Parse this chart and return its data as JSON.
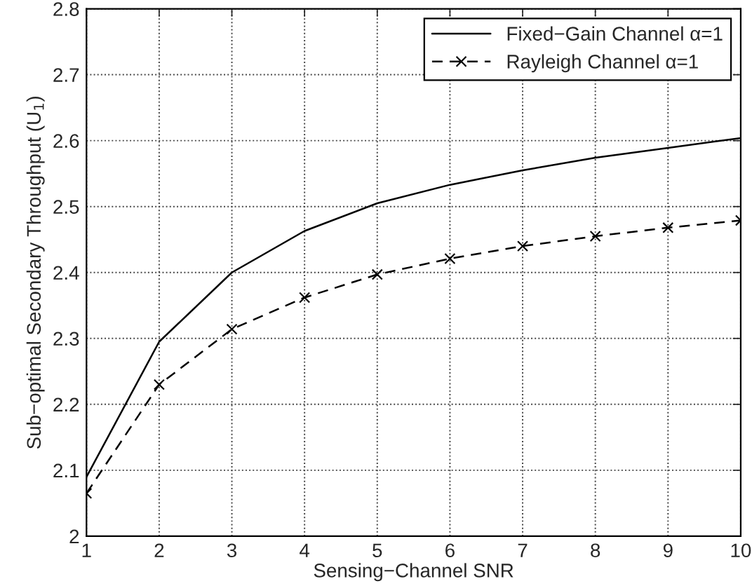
{
  "chart_data": {
    "type": "line",
    "xlabel": "Sensing−Channel SNR",
    "ylabel": "Sub−optimal Secondary Throughput (U$_{1}$)",
    "x": [
      1,
      2,
      3,
      4,
      5,
      6,
      7,
      8,
      9,
      10
    ],
    "series": [
      {
        "name": "Fixed−Gain Channel α=1",
        "color": "#000000",
        "marker": "none",
        "line_style": "solid",
        "values": [
          2.09,
          2.295,
          2.4,
          2.463,
          2.505,
          2.533,
          2.555,
          2.574,
          2.589,
          2.604
        ]
      },
      {
        "name": "Rayleigh Channel α=1",
        "color": "#000000",
        "marker": "cross",
        "line_style": "dashed",
        "values": [
          2.065,
          2.23,
          2.314,
          2.362,
          2.397,
          2.421,
          2.44,
          2.455,
          2.468,
          2.479
        ]
      }
    ],
    "xlim": [
      1,
      10
    ],
    "xticks": [
      1,
      2,
      3,
      4,
      5,
      6,
      7,
      8,
      9,
      10
    ],
    "ylim": [
      2,
      2.8
    ],
    "yticks": [
      2,
      2.1,
      2.2,
      2.3,
      2.4,
      2.5,
      2.6,
      2.7,
      2.8
    ],
    "grid": true,
    "legend": "top right"
  }
}
